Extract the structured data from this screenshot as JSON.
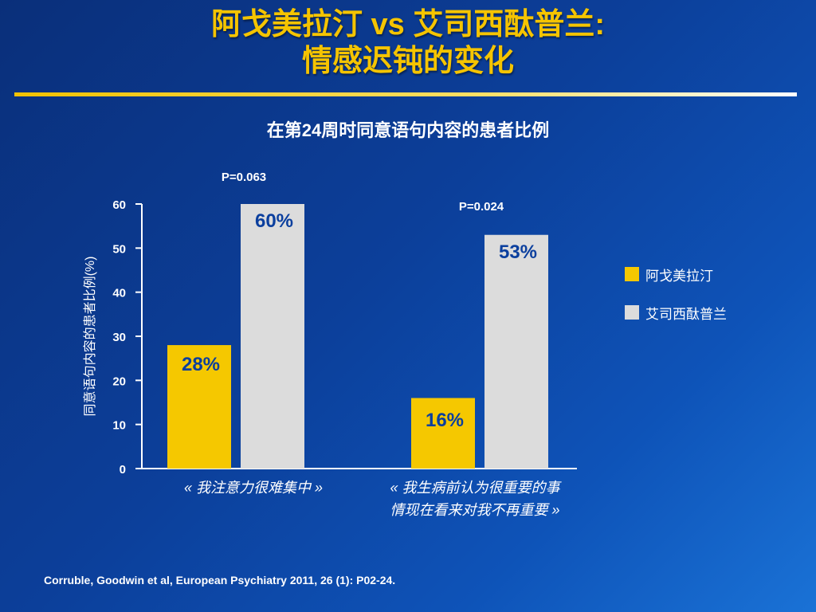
{
  "slide": {
    "title_line1": "阿戈美拉汀 vs 艾司西酞普兰:",
    "title_line2": "情感迟钝的变化",
    "citation": "Corruble, Goodwin et al,  European Psychiatry 2011, 26 (1): P02-24."
  },
  "chart_data": {
    "type": "bar",
    "title": "在第24周时同意语句内容的患者比例",
    "ylabel": "同意语句内容的患者比例(%)",
    "xlabel": "",
    "ylim": [
      0,
      60
    ],
    "yticks": [
      "0",
      "10",
      "20",
      "30",
      "40",
      "50",
      "60"
    ],
    "categories": [
      [
        "« 我注意力很难集中 »"
      ],
      [
        "« 我生病前认为很重要的事",
        "情现在看来对我不再重要 »"
      ]
    ],
    "series": [
      {
        "name": "阿戈美拉汀",
        "color": "#f5c800",
        "values": [
          28,
          16
        ],
        "labels": [
          "28%",
          "16%"
        ]
      },
      {
        "name": "艾司西酞普兰",
        "color": "#dcdcdc",
        "values": [
          60,
          53
        ],
        "labels": [
          "60%",
          "53%"
        ]
      }
    ],
    "annotations": [
      "P=0.063",
      "P=0.024"
    ],
    "legend_position": "right",
    "grid": false
  }
}
